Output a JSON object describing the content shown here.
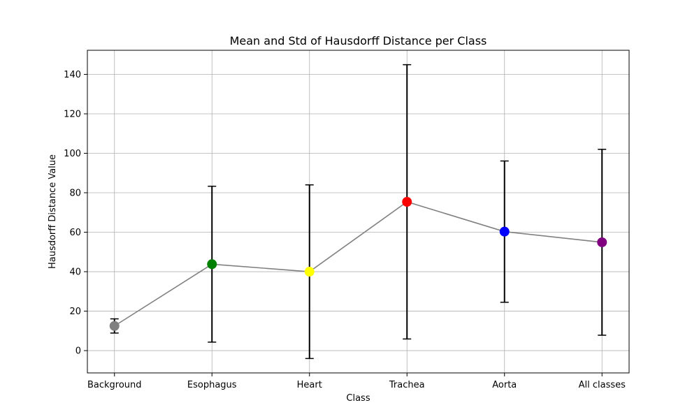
{
  "chart_data": {
    "type": "line",
    "title": "Mean and Std of Hausdorff Distance per Class",
    "xlabel": "Class",
    "ylabel": "Hausdorff Distance Value",
    "categories": [
      "Background",
      "Esophagus",
      "Heart",
      "Trachea",
      "Aorta",
      "All classes"
    ],
    "series": [
      {
        "values": [
          12.5,
          43.8,
          40.0,
          75.4,
          60.3,
          54.9
        ],
        "std": [
          3.6,
          39.5,
          44.0,
          69.5,
          35.8,
          47.1
        ],
        "colors": [
          "#808080",
          "#008000",
          "#ffff00",
          "#ff0000",
          "#0000ff",
          "#800080"
        ],
        "line_color": "#808080",
        "errorbar_color": "#000000"
      }
    ],
    "ylim": [
      -11.3,
      152.2
    ],
    "yticks": [
      0,
      20,
      40,
      60,
      80,
      100,
      120,
      140
    ],
    "grid": true
  }
}
